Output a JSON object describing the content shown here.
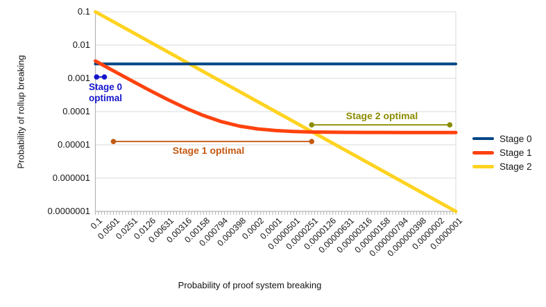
{
  "chart_data": {
    "type": "line",
    "title": "",
    "x_axis": {
      "label": "Probability of proof system breaking",
      "scale": "log",
      "min": 1e-07,
      "max": 0.1,
      "tick_labels": [
        "0.1",
        "0.0501",
        "0.0251",
        "0.0126",
        "0.00631",
        "0.00316",
        "0.00158",
        "0.000794",
        "0.000398",
        "0.0002",
        "0.0001",
        "0.0000501",
        "0.0000251",
        "0.0000126",
        "0.00000631",
        "0.00000316",
        "0.00000158",
        "0.000000794",
        "0.000000398",
        "0.0000002",
        "0.0000001"
      ],
      "tick_step_decades": 0.3,
      "minor_tick_step_decades": 0.05
    },
    "y_axis": {
      "label": "Probability of rollup breaking",
      "scale": "log",
      "min": 1e-07,
      "max": 0.1,
      "tick_labels": [
        "0.1",
        "0.01",
        "0.001",
        "0.0001",
        "0.00001",
        "0.000001",
        "0.0000001"
      ],
      "tick_values": [
        0.1,
        0.01,
        0.001,
        0.0001,
        1e-05,
        1e-06,
        1e-07
      ]
    },
    "grid": "horizontal-only",
    "series": [
      {
        "name": "Stage 0",
        "color": "#004586",
        "width": 4,
        "points": [
          [
            0.1,
            0.0027
          ],
          [
            1e-07,
            0.0027
          ]
        ]
      },
      {
        "name": "Stage 1",
        "color": "#FF420E",
        "width": 5,
        "points": [
          [
            0.1,
            0.00332
          ],
          [
            0.0501,
            0.00168
          ],
          [
            0.0251,
            0.000852
          ],
          [
            0.0126,
            0.000439
          ],
          [
            0.00631,
            0.000232
          ],
          [
            0.00316,
            0.000128
          ],
          [
            0.00158,
            7.58e-05
          ],
          [
            0.000794,
            4.97e-05
          ],
          [
            0.000398,
            3.66e-05
          ],
          [
            0.0002,
            3.01e-05
          ],
          [
            0.0001,
            2.68e-05
          ],
          [
            5.01e-05,
            2.52e-05
          ],
          [
            2.51e-05,
            2.43e-05
          ],
          [
            1.26e-05,
            2.39e-05
          ],
          [
            6.31e-06,
            2.37e-05
          ],
          [
            3.16e-06,
            2.36e-05
          ],
          [
            1.58e-06,
            2.36e-05
          ],
          [
            7.94e-07,
            2.35e-05
          ],
          [
            3.98e-07,
            2.35e-05
          ],
          [
            2e-07,
            2.35e-05
          ],
          [
            1e-07,
            2.35e-05
          ]
        ]
      },
      {
        "name": "Stage 2",
        "color": "#FFD320",
        "width": 5,
        "points": [
          [
            0.1,
            0.1
          ],
          [
            1e-07,
            1e-07
          ]
        ]
      }
    ],
    "annotations": [
      {
        "id": "stage0-optimal",
        "label": "Stage 0 optimal",
        "label_lines": [
          "Stage 0",
          "optimal"
        ],
        "color": "#1414CC",
        "x_start": 0.0955,
        "x_end": 0.0708,
        "y": 0.0011
      },
      {
        "id": "stage1-optimal",
        "label": "Stage 1 optimal",
        "label_lines": [
          "Stage 1 optimal"
        ],
        "color": "#C45911",
        "x_start": 0.0501,
        "x_end": 2.51e-05,
        "y": 1.26e-05
      },
      {
        "id": "stage2-optimal",
        "label": "Stage 2 optimal",
        "label_lines": [
          "Stage 2 optimal"
        ],
        "color": "#8C8C00",
        "x_start": 2.51e-05,
        "x_end": 1.26e-07,
        "y": 3.98e-05
      }
    ],
    "legend": {
      "position": "right",
      "items": [
        {
          "label": "Stage 0",
          "color": "#004586"
        },
        {
          "label": "Stage 1",
          "color": "#FF420E"
        },
        {
          "label": "Stage 2",
          "color": "#FFD320"
        }
      ]
    },
    "colors": {
      "gridline": "#d9d9d9",
      "axis": "#b3b3b3",
      "background": "#ffffff"
    }
  }
}
